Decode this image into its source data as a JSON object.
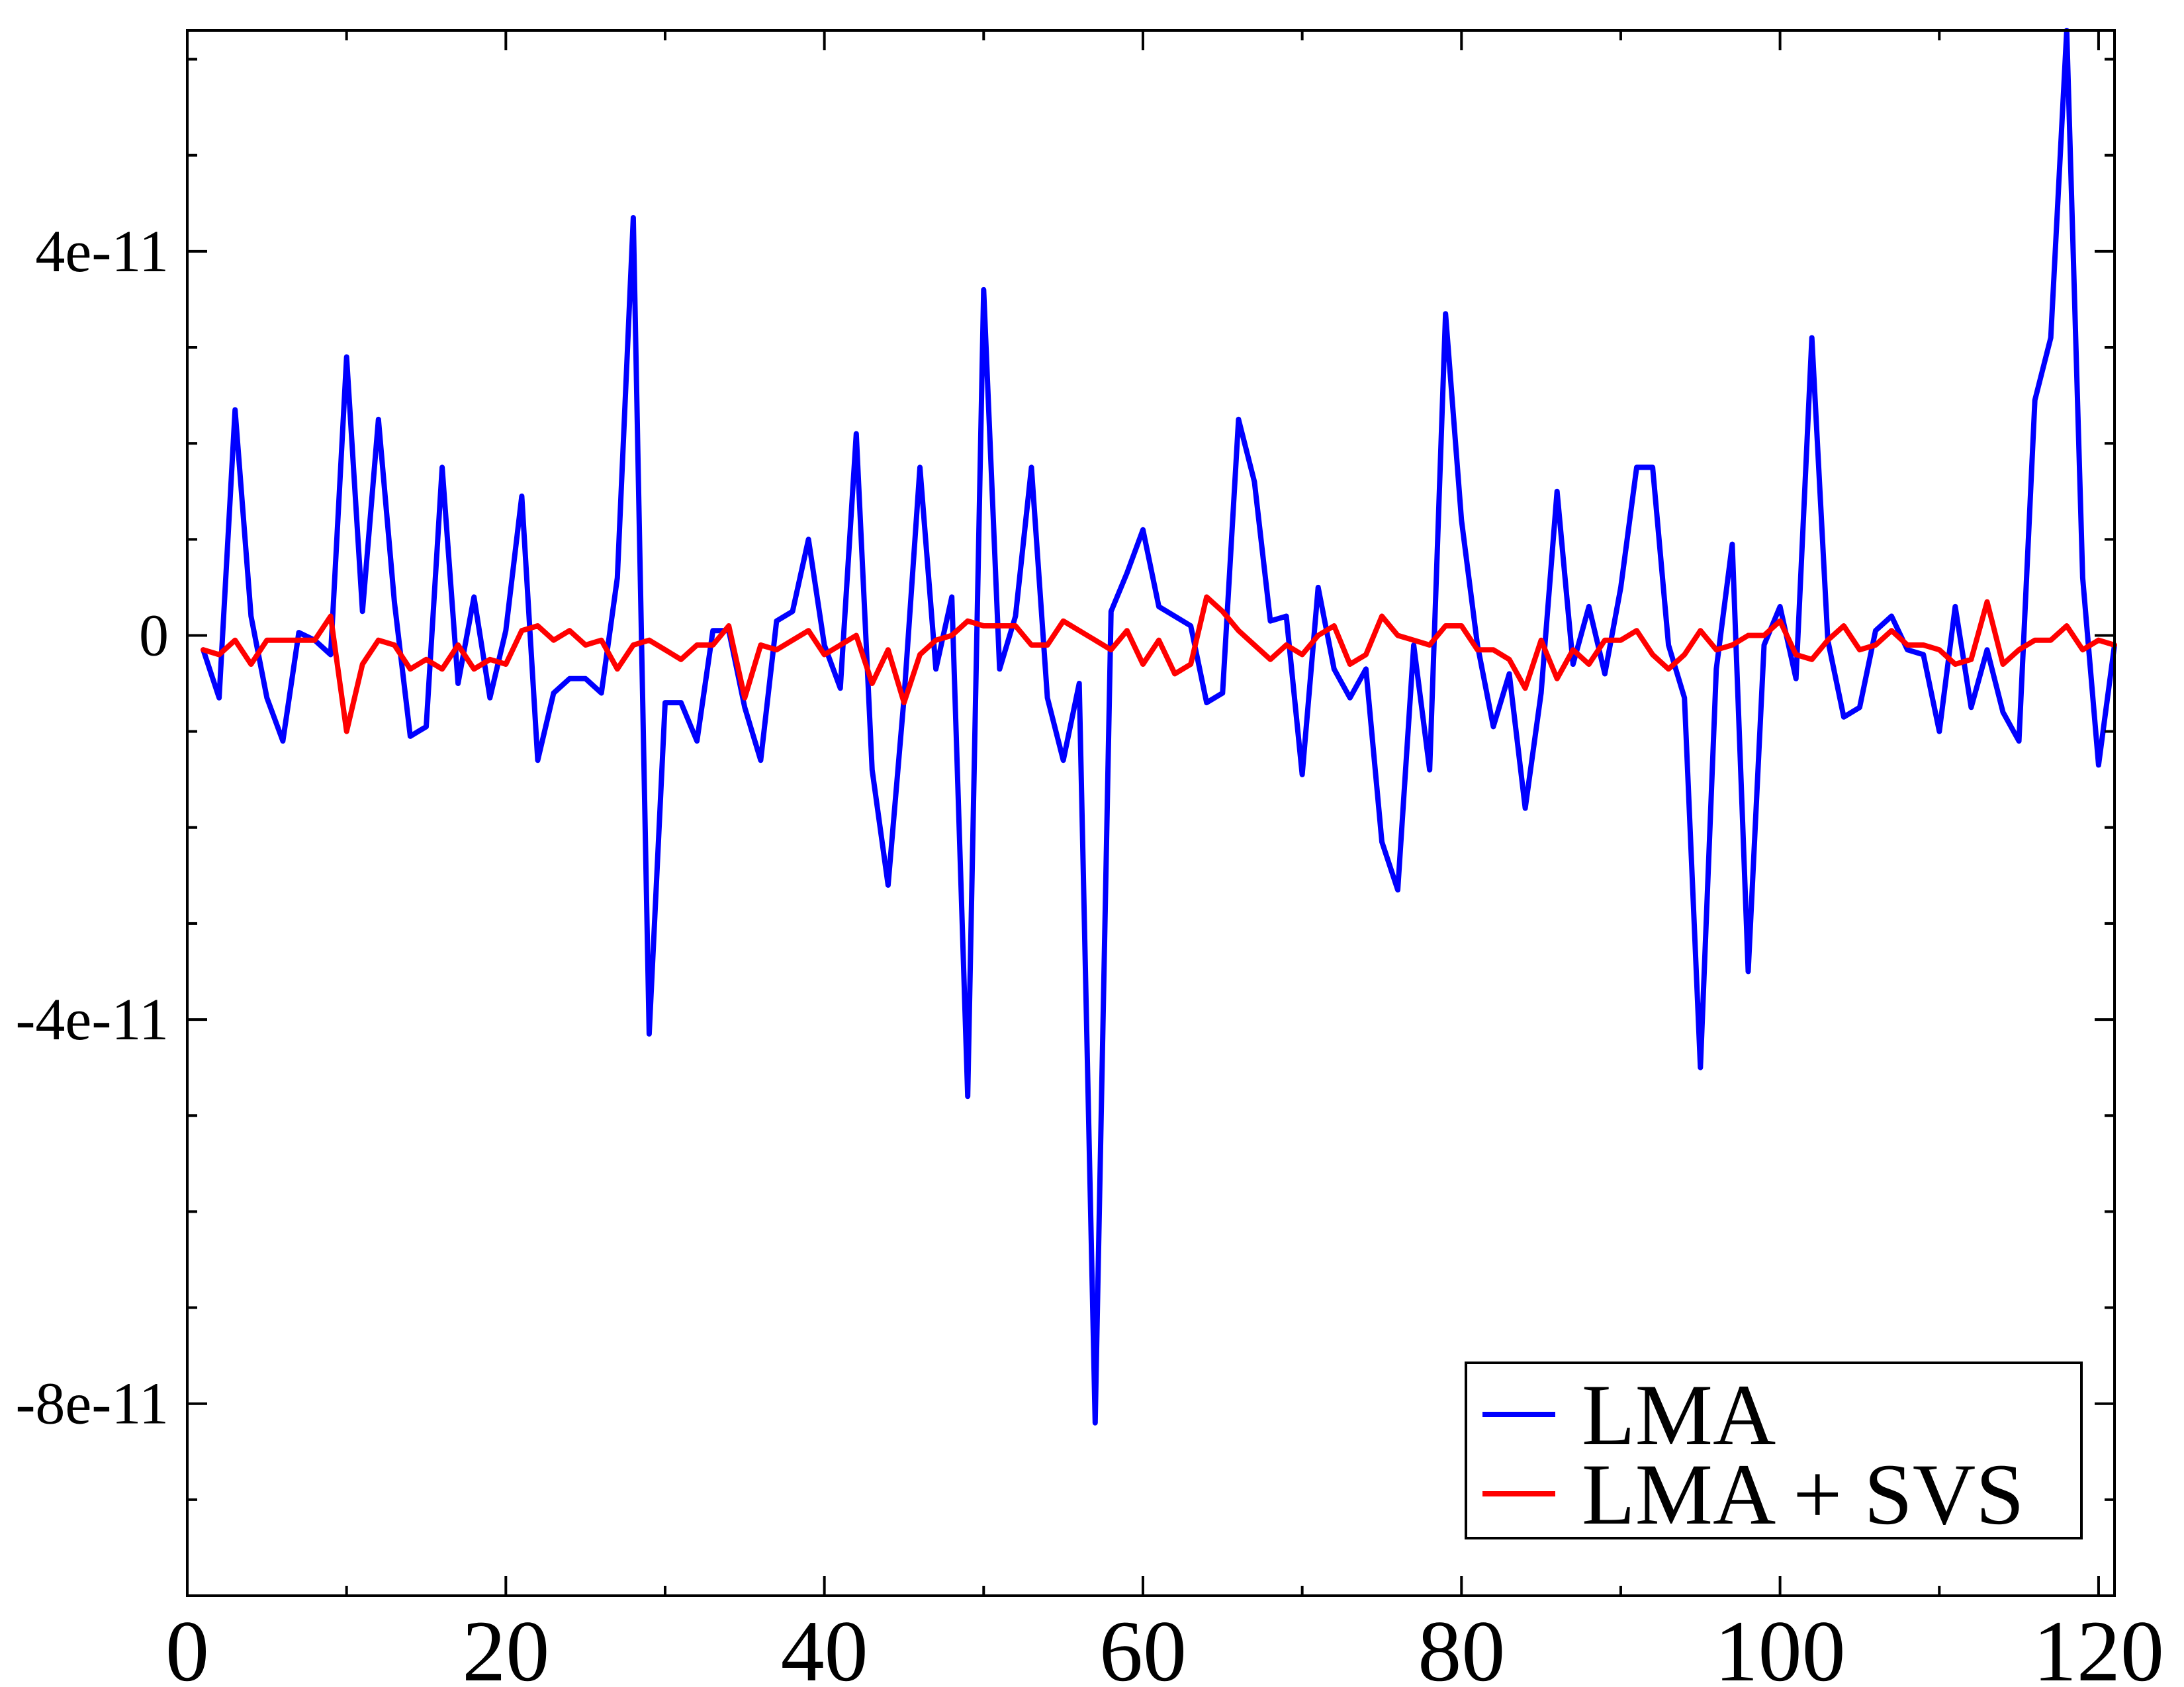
{
  "chart_data": {
    "type": "line",
    "title": "",
    "xlabel": "",
    "ylabel": "",
    "xlim": [
      0,
      121
    ],
    "ylim": [
      -1e-10,
      6.3e-11
    ],
    "grid": false,
    "legend_position": "bottom-right",
    "x_ticks": [
      0,
      20,
      40,
      60,
      80,
      100,
      120
    ],
    "x_tick_labels": [
      "0",
      "20",
      "40",
      "60",
      "80",
      "100",
      "120"
    ],
    "x_minor_step": 10,
    "y_ticks": [
      4e-11,
      0,
      -4e-11,
      -8e-11
    ],
    "y_tick_labels": [
      "4e-11",
      "0",
      "-4e-11",
      "-8e-11"
    ],
    "y_minor_step": 1e-11,
    "series": [
      {
        "name": "LMA",
        "color": "#0000ff",
        "x": [
          1,
          2,
          3,
          4,
          5,
          6,
          7,
          8,
          9,
          10,
          11,
          12,
          13,
          14,
          15,
          16,
          17,
          18,
          19,
          20,
          21,
          22,
          23,
          24,
          25,
          26,
          27,
          28,
          29,
          30,
          31,
          32,
          33,
          34,
          35,
          36,
          37,
          38,
          39,
          40,
          41,
          42,
          43,
          44,
          45,
          46,
          47,
          48,
          49,
          50,
          51,
          52,
          53,
          54,
          55,
          56,
          57,
          58,
          59,
          60,
          61,
          62,
          63,
          64,
          65,
          66,
          67,
          68,
          69,
          70,
          71,
          72,
          73,
          74,
          75,
          76,
          77,
          78,
          79,
          80,
          81,
          82,
          83,
          84,
          85,
          86,
          87,
          88,
          89,
          90,
          91,
          92,
          93,
          94,
          95,
          96,
          97,
          98,
          99,
          100,
          101,
          102,
          103,
          104,
          105,
          106,
          107,
          108,
          109,
          110,
          111,
          112,
          113,
          114,
          115,
          116,
          117,
          118,
          119,
          120,
          121
        ],
        "y": [
          -1.5e-12,
          -6.5e-12,
          2.35e-11,
          2e-12,
          -6.5e-12,
          -1.1e-11,
          3e-13,
          -5e-13,
          -2e-12,
          2.9e-11,
          2.5e-12,
          2.25e-11,
          3.5e-12,
          -1.05e-11,
          -9.5e-12,
          1.75e-11,
          -5e-12,
          4e-12,
          -6.5e-12,
          5e-13,
          1.45e-11,
          -1.3e-11,
          -6e-12,
          -4.5e-12,
          -4.5e-12,
          -6e-12,
          6e-12,
          4.35e-11,
          -4.15e-11,
          -7e-12,
          -7e-12,
          -1.1e-11,
          5e-13,
          5e-13,
          -7.5e-12,
          -1.3e-11,
          1.5e-12,
          2.5e-12,
          1e-11,
          -1e-12,
          -5.5e-12,
          2.1e-11,
          -1.4e-11,
          -2.6e-11,
          -6.5e-12,
          1.75e-11,
          -3.5e-12,
          4e-12,
          -4.8e-11,
          3.6e-11,
          -3.5e-12,
          2e-12,
          1.75e-11,
          -6.5e-12,
          -1.3e-11,
          -5e-12,
          -8.2e-11,
          2.5e-12,
          6.5e-12,
          1.1e-11,
          3e-12,
          2e-12,
          1e-12,
          -7e-12,
          -6e-12,
          2.25e-11,
          1.6e-11,
          1.5e-12,
          2e-12,
          -1.45e-11,
          5e-12,
          -3.5e-12,
          -6.5e-12,
          -3.5e-12,
          -2.15e-11,
          -2.65e-11,
          -1e-12,
          -1.4e-11,
          3.35e-11,
          1.2e-11,
          -1e-12,
          -9.5e-12,
          -4e-12,
          -1.8e-11,
          -6e-12,
          1.5e-11,
          -3e-12,
          3e-12,
          -4e-12,
          5e-12,
          1.75e-11,
          1.75e-11,
          -1e-12,
          -6.5e-12,
          -4.5e-11,
          -3.5e-12,
          9.5e-12,
          -3.5e-11,
          -1e-12,
          3e-12,
          -4.5e-12,
          3.1e-11,
          -5e-13,
          -8.5e-12,
          -7.5e-12,
          5e-13,
          2e-12,
          -1.5e-12,
          -2e-12,
          -1e-11,
          3e-12,
          -7.5e-12,
          -1.5e-12,
          -8e-12,
          -1.1e-11,
          2.45e-11,
          3.1e-11,
          6.3e-11,
          6e-12,
          -1.35e-11,
          -1e-12
        ]
      },
      {
        "name": "LMA + SVS",
        "color": "#ff0000",
        "x": [
          1,
          2,
          3,
          4,
          5,
          6,
          7,
          8,
          9,
          10,
          11,
          12,
          13,
          14,
          15,
          16,
          17,
          18,
          19,
          20,
          21,
          22,
          23,
          24,
          25,
          26,
          27,
          28,
          29,
          30,
          31,
          32,
          33,
          34,
          35,
          36,
          37,
          38,
          39,
          40,
          41,
          42,
          43,
          44,
          45,
          46,
          47,
          48,
          49,
          50,
          51,
          52,
          53,
          54,
          55,
          56,
          57,
          58,
          59,
          60,
          61,
          62,
          63,
          64,
          65,
          66,
          67,
          68,
          69,
          70,
          71,
          72,
          73,
          74,
          75,
          76,
          77,
          78,
          79,
          80,
          81,
          82,
          83,
          84,
          85,
          86,
          87,
          88,
          89,
          90,
          91,
          92,
          93,
          94,
          95,
          96,
          97,
          98,
          99,
          100,
          101,
          102,
          103,
          104,
          105,
          106,
          107,
          108,
          109,
          110,
          111,
          112,
          113,
          114,
          115,
          116,
          117,
          118,
          119,
          120,
          121
        ],
        "y": [
          -1.5e-12,
          -2e-12,
          -5e-13,
          -3e-12,
          -5e-13,
          -5e-13,
          -5e-13,
          -5e-13,
          2e-12,
          -1e-11,
          -3e-12,
          -5e-13,
          -1e-12,
          -3.5e-12,
          -2.5e-12,
          -3.5e-12,
          -1e-12,
          -3.5e-12,
          -2.5e-12,
          -3e-12,
          5e-13,
          1e-12,
          -5e-13,
          5e-13,
          -1e-12,
          -5e-13,
          -3.5e-12,
          -1e-12,
          -5e-13,
          -1.5e-12,
          -2.5e-12,
          -1e-12,
          -1e-12,
          1e-12,
          -6.5e-12,
          -1e-12,
          -1.5e-12,
          -5e-13,
          5e-13,
          -2e-12,
          -1e-12,
          0.0,
          -5e-12,
          -1.5e-12,
          -7e-12,
          -2e-12,
          -5e-13,
          0.0,
          1.5e-12,
          1e-12,
          1e-12,
          1e-12,
          -1e-12,
          -1e-12,
          1.5e-12,
          5e-13,
          -5e-13,
          -1.5e-12,
          5e-13,
          -3e-12,
          -5e-13,
          -4e-12,
          -3e-12,
          4e-12,
          2.5e-12,
          5e-13,
          -1e-12,
          -2.5e-12,
          -1e-12,
          -2e-12,
          0.0,
          1e-12,
          -3e-12,
          -2e-12,
          2e-12,
          0.0,
          -5e-13,
          -1e-12,
          1e-12,
          1e-12,
          -1.5e-12,
          -1.5e-12,
          -2.5e-12,
          -5.5e-12,
          -5e-13,
          -4.5e-12,
          -1.5e-12,
          -3e-12,
          -5e-13,
          -5e-13,
          5e-13,
          -2e-12,
          -3.5e-12,
          -2e-12,
          5e-13,
          -1.5e-12,
          -1e-12,
          0.0,
          0.0,
          1.5e-12,
          -2e-12,
          -2.5e-12,
          -5e-13,
          1e-12,
          -1.5e-12,
          -1e-12,
          5e-13,
          -1e-12,
          -1e-12,
          -1.5e-12,
          -3e-12,
          -2.5e-12,
          3.5e-12,
          -3e-12,
          -1.5e-12,
          -5e-13,
          -5e-13,
          1e-12,
          -1.5e-12,
          -5e-13,
          -1e-12
        ]
      }
    ]
  }
}
